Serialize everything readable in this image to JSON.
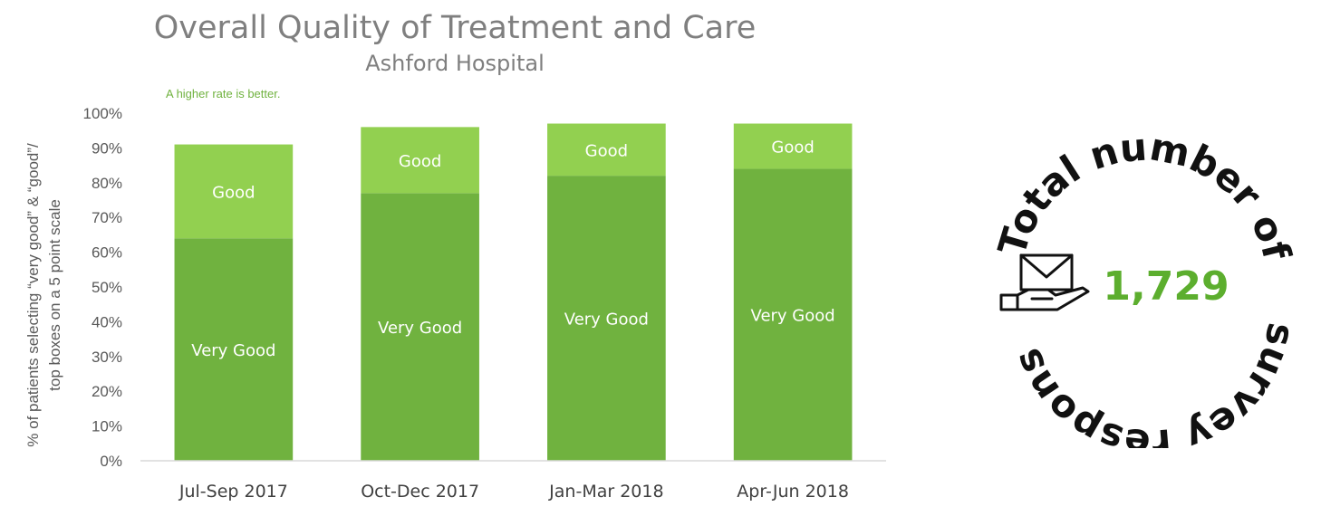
{
  "chart_data": {
    "type": "bar",
    "stacked": true,
    "title": "Overall Quality of Treatment and Care",
    "subtitle": "Ashford Hospital",
    "note": "A higher rate is better.",
    "ylabel_lines": [
      "% of patients selecting “very good” & “good”/",
      "top boxes on a 5 point scale"
    ],
    "ylim": [
      0,
      100
    ],
    "yticks": [
      0,
      10,
      20,
      30,
      40,
      50,
      60,
      70,
      80,
      90,
      100
    ],
    "ytick_suffix": "%",
    "categories": [
      "Jul-Sep 2017",
      "Oct-Dec 2017",
      "Jan-Mar 2018",
      "Apr-Jun 2018"
    ],
    "series": [
      {
        "name": "Very Good",
        "color": "#70b23f",
        "values": [
          64,
          77,
          82,
          84
        ]
      },
      {
        "name": "Good",
        "color": "#92d050",
        "values": [
          27,
          19,
          15,
          13
        ]
      }
    ],
    "grid": false,
    "legend": "none"
  },
  "badge": {
    "value": "1,729",
    "value_color": "#5cae2e",
    "arc_text": "Total number of survey responses",
    "icon": "envelope-in-hand-icon"
  },
  "colors": {
    "title": "#7f7f7f",
    "note": "#70b23f",
    "axis_text": "#595959"
  }
}
